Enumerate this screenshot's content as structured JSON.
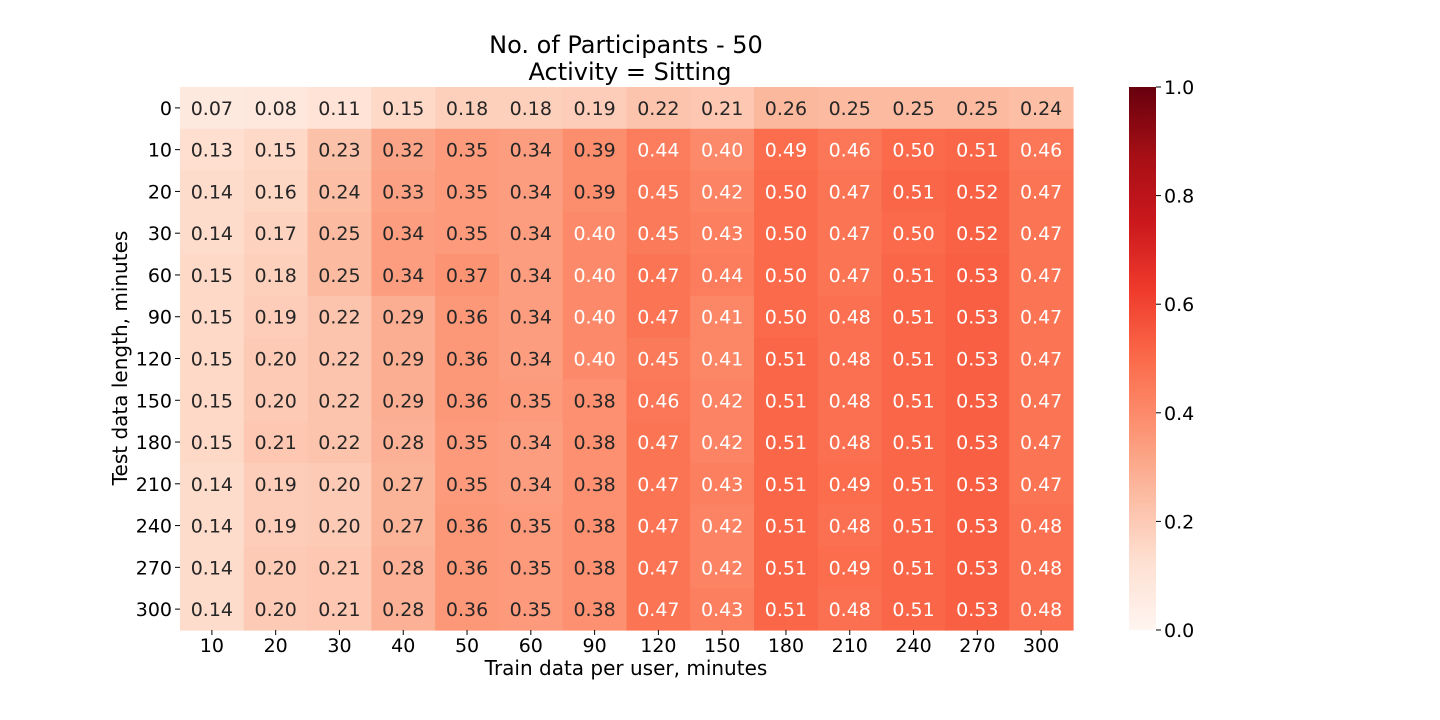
{
  "chart_data": {
    "type": "heatmap",
    "title": [
      "No. of Participants - 50",
      "Activity = Sitting"
    ],
    "xlabel": "Train data per user, minutes",
    "ylabel": "Test data length, minutes",
    "x_categories": [
      "10",
      "20",
      "30",
      "40",
      "50",
      "60",
      "90",
      "120",
      "150",
      "180",
      "210",
      "240",
      "270",
      "300"
    ],
    "y_categories": [
      "0",
      "10",
      "20",
      "30",
      "60",
      "90",
      "120",
      "150",
      "180",
      "210",
      "240",
      "270",
      "300"
    ],
    "values": [
      [
        0.07,
        0.08,
        0.11,
        0.15,
        0.18,
        0.18,
        0.19,
        0.22,
        0.21,
        0.26,
        0.25,
        0.25,
        0.25,
        0.24
      ],
      [
        0.13,
        0.15,
        0.23,
        0.32,
        0.35,
        0.34,
        0.39,
        0.44,
        0.4,
        0.49,
        0.46,
        0.5,
        0.51,
        0.46
      ],
      [
        0.14,
        0.16,
        0.24,
        0.33,
        0.35,
        0.34,
        0.39,
        0.45,
        0.42,
        0.5,
        0.47,
        0.51,
        0.52,
        0.47
      ],
      [
        0.14,
        0.17,
        0.25,
        0.34,
        0.35,
        0.34,
        0.4,
        0.45,
        0.43,
        0.5,
        0.47,
        0.5,
        0.52,
        0.47
      ],
      [
        0.15,
        0.18,
        0.25,
        0.34,
        0.37,
        0.34,
        0.4,
        0.47,
        0.44,
        0.5,
        0.47,
        0.51,
        0.53,
        0.47
      ],
      [
        0.15,
        0.19,
        0.22,
        0.29,
        0.36,
        0.34,
        0.4,
        0.47,
        0.41,
        0.5,
        0.48,
        0.51,
        0.53,
        0.47
      ],
      [
        0.15,
        0.2,
        0.22,
        0.29,
        0.36,
        0.34,
        0.4,
        0.45,
        0.41,
        0.51,
        0.48,
        0.51,
        0.53,
        0.47
      ],
      [
        0.15,
        0.2,
        0.22,
        0.29,
        0.36,
        0.35,
        0.38,
        0.46,
        0.42,
        0.51,
        0.48,
        0.51,
        0.53,
        0.47
      ],
      [
        0.15,
        0.21,
        0.22,
        0.28,
        0.35,
        0.34,
        0.38,
        0.47,
        0.42,
        0.51,
        0.48,
        0.51,
        0.53,
        0.47
      ],
      [
        0.14,
        0.19,
        0.2,
        0.27,
        0.35,
        0.34,
        0.38,
        0.47,
        0.43,
        0.51,
        0.49,
        0.51,
        0.53,
        0.47
      ],
      [
        0.14,
        0.19,
        0.2,
        0.27,
        0.36,
        0.35,
        0.38,
        0.47,
        0.42,
        0.51,
        0.48,
        0.51,
        0.53,
        0.48
      ],
      [
        0.14,
        0.2,
        0.21,
        0.28,
        0.36,
        0.35,
        0.38,
        0.47,
        0.42,
        0.51,
        0.49,
        0.51,
        0.53,
        0.48
      ],
      [
        0.14,
        0.2,
        0.21,
        0.28,
        0.36,
        0.35,
        0.38,
        0.47,
        0.43,
        0.51,
        0.48,
        0.51,
        0.53,
        0.48
      ]
    ],
    "value_range": [
      0.0,
      1.0
    ],
    "colormap": "Reds",
    "colorbar": {
      "ticks": [
        "0.0",
        "0.2",
        "0.4",
        "0.6",
        "0.8",
        "1.0"
      ],
      "tick_values": [
        0.0,
        0.2,
        0.4,
        0.6,
        0.8,
        1.0
      ],
      "placement": "right"
    },
    "annotations": "cell values printed with 2 decimals",
    "grid": false
  }
}
